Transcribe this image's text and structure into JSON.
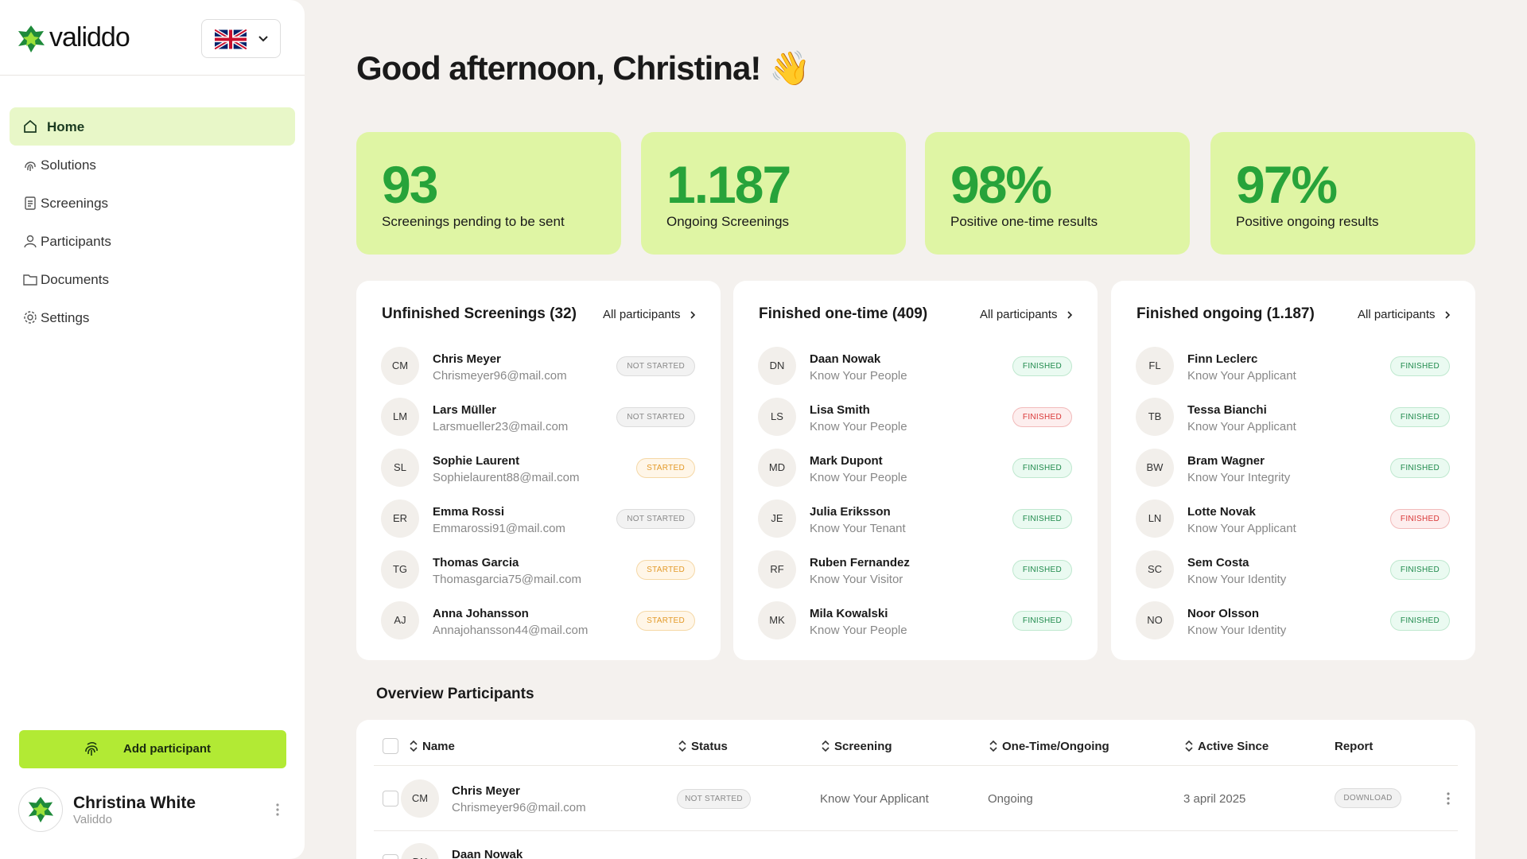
{
  "sidebar": {
    "brand": "validdo",
    "nav": [
      "Home",
      "Solutions",
      "Screenings",
      "Participants",
      "Documents",
      "Settings"
    ],
    "add_button": "Add participant",
    "user": {
      "name": "Christina White",
      "organization": "Validdo"
    }
  },
  "greeting": "Good afternoon, Christina! 👋",
  "stats": [
    {
      "value": "93",
      "label": "Screenings pending to be sent"
    },
    {
      "value": "1.187",
      "label": "Ongoing Screenings"
    },
    {
      "value": "98%",
      "label": "Positive one-time results"
    },
    {
      "value": "97%",
      "label": "Positive ongoing results"
    }
  ],
  "panels": [
    {
      "title": "Unfinished Screenings (32)",
      "link": "All participants",
      "rows": [
        {
          "initials": "CM",
          "name": "Chris Meyer",
          "detail": "Chrismeyer96@mail.com",
          "status": "NOT STARTED",
          "tone": "neutral"
        },
        {
          "initials": "LM",
          "name": "Lars Müller",
          "detail": "Larsmueller23@mail.com",
          "status": "NOT STARTED",
          "tone": "neutral"
        },
        {
          "initials": "SL",
          "name": "Sophie Laurent",
          "detail": "Sophielaurent88@mail.com",
          "status": "STARTED",
          "tone": "warning"
        },
        {
          "initials": "ER",
          "name": "Emma Rossi",
          "detail": "Emmarossi91@mail.com",
          "status": "NOT STARTED",
          "tone": "neutral"
        },
        {
          "initials": "TG",
          "name": "Thomas Garcia",
          "detail": "Thomasgarcia75@mail.com",
          "status": "STARTED",
          "tone": "warning"
        },
        {
          "initials": "AJ",
          "name": "Anna Johansson",
          "detail": "Annajohansson44@mail.com",
          "status": "STARTED",
          "tone": "warning"
        }
      ]
    },
    {
      "title": "Finished one-time (409)",
      "link": "All participants",
      "rows": [
        {
          "initials": "DN",
          "name": "Daan Nowak",
          "detail": "Know Your People",
          "status": "FINISHED",
          "tone": "success"
        },
        {
          "initials": "LS",
          "name": "Lisa Smith",
          "detail": "Know Your People",
          "status": "FINISHED",
          "tone": "danger"
        },
        {
          "initials": "MD",
          "name": "Mark Dupont",
          "detail": "Know Your People",
          "status": "FINISHED",
          "tone": "success"
        },
        {
          "initials": "JE",
          "name": "Julia Eriksson",
          "detail": "Know Your Tenant",
          "status": "FINISHED",
          "tone": "success"
        },
        {
          "initials": "RF",
          "name": "Ruben Fernandez",
          "detail": "Know Your Visitor",
          "status": "FINISHED",
          "tone": "success"
        },
        {
          "initials": "MK",
          "name": "Mila Kowalski",
          "detail": "Know Your People",
          "status": "FINISHED",
          "tone": "success"
        }
      ]
    },
    {
      "title": "Finished ongoing (1.187)",
      "link": "All participants",
      "rows": [
        {
          "initials": "FL",
          "name": "Finn Leclerc",
          "detail": "Know Your Applicant",
          "status": "FINISHED",
          "tone": "success"
        },
        {
          "initials": "TB",
          "name": "Tessa Bianchi",
          "detail": "Know Your Applicant",
          "status": "FINISHED",
          "tone": "success"
        },
        {
          "initials": "BW",
          "name": "Bram Wagner",
          "detail": "Know Your Integrity",
          "status": "FINISHED",
          "tone": "success"
        },
        {
          "initials": "LN",
          "name": "Lotte Novak",
          "detail": "Know Your Applicant",
          "status": "FINISHED",
          "tone": "danger"
        },
        {
          "initials": "SC",
          "name": "Sem Costa",
          "detail": "Know Your Identity",
          "status": "FINISHED",
          "tone": "success"
        },
        {
          "initials": "NO",
          "name": "Noor Olsson",
          "detail": "Know Your Identity",
          "status": "FINISHED",
          "tone": "success"
        }
      ]
    }
  ],
  "table": {
    "title": "Overview Participants",
    "columns": [
      "Name",
      "Status",
      "Screening",
      "One-Time/Ongoing",
      "Active Since",
      "Report"
    ],
    "rows": [
      {
        "initials": "CM",
        "name": "Chris Meyer",
        "email": "Chrismeyer96@mail.com",
        "status": "NOT STARTED",
        "tone": "neutral",
        "screening": "Know Your Applicant",
        "kind": "Ongoing",
        "active_since": "3 april 2025",
        "report": "DOWNLOAD"
      },
      {
        "initials": "DN",
        "name": "Daan Nowak"
      }
    ]
  }
}
